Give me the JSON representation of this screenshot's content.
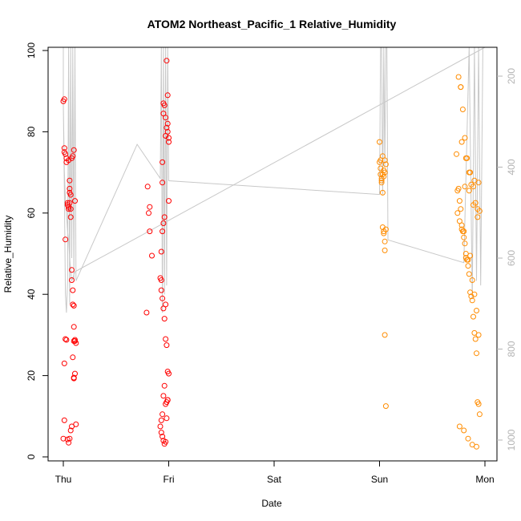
{
  "chart_data": {
    "type": "scatter",
    "title": "ATOM2 Northeast_Pacific_1 Relative_Humidity",
    "xlabel": "Date",
    "ylabel": "Relative_Humidity",
    "x_ticks": [
      "Thu",
      "Fri",
      "Sat",
      "Sun",
      "Mon"
    ],
    "x_tick_day_index": [
      0,
      1,
      2,
      3,
      4
    ],
    "xlim": [
      -0.2,
      4.1
    ],
    "ylim": [
      0,
      100
    ],
    "y_ticks": [
      0,
      20,
      40,
      60,
      80,
      100
    ],
    "right_axis": {
      "ticks": [
        200,
        400,
        600,
        800,
        1000
      ],
      "lim": [
        1050,
        110
      ],
      "color": "#b4b4b4"
    },
    "colors": {
      "series_1": "#ff0000",
      "series_2": "#ff8c00",
      "profile_line": "#c8c8c8",
      "axis": "#000000"
    },
    "series": [
      {
        "color": "#ff0000",
        "x": [
          0.0,
          0.01,
          0.01,
          0.01,
          0.02,
          0.02,
          0.01,
          0.03,
          0.03,
          0.04,
          0.04,
          0.05,
          0.05,
          0.05,
          0.06,
          0.06,
          0.06,
          0.07,
          0.07,
          0.08,
          0.08,
          0.09,
          0.09,
          0.1,
          0.1,
          0.11,
          0.12,
          0.11,
          0.11,
          0.1,
          0.09,
          0.1,
          0.1,
          0.12,
          0.08,
          0.07,
          0.06,
          0.05,
          0.04,
          0.03,
          0.02,
          0.01,
          0.0,
          0.06,
          0.07,
          0.08,
          0.09,
          0.1,
          0.11,
          0.79,
          0.8,
          0.81,
          0.82,
          0.82,
          0.84,
          0.93,
          0.94,
          0.94,
          0.95,
          0.96,
          0.95,
          0.97,
          0.98,
          0.99,
          0.99,
          1.0,
          1.0,
          0.99,
          0.98,
          0.97,
          0.96,
          0.95,
          0.94,
          0.93,
          0.92,
          0.93,
          0.94,
          0.95,
          0.96,
          0.97,
          0.97,
          0.98,
          0.99,
          1.0,
          0.99,
          0.98,
          0.97,
          0.96,
          0.95,
          0.94,
          0.93,
          0.92,
          0.93,
          0.94,
          0.95,
          0.96,
          0.97,
          0.98,
          0.99,
          1.0
        ],
        "y": [
          87.5,
          88.0,
          76.0,
          75.0,
          74.5,
          53.5,
          23.0,
          72.5,
          73.5,
          62.5,
          62.0,
          61.5,
          61.0,
          73.0,
          68.0,
          66.0,
          65.0,
          64.5,
          59.0,
          46.0,
          43.5,
          41.0,
          37.5,
          37.2,
          32.0,
          28.5,
          28.0,
          28.8,
          20.5,
          19.5,
          24.5,
          19.3,
          28.5,
          8.0,
          7.5,
          6.5,
          4.5,
          3.5,
          4.3,
          28.8,
          29.0,
          9.0,
          4.5,
          62.5,
          61.0,
          73.5,
          74.0,
          75.5,
          63.0,
          35.5,
          66.5,
          60.0,
          61.5,
          55.5,
          49.5,
          43.5,
          72.5,
          67.5,
          87.0,
          86.5,
          84.5,
          83.5,
          97.5,
          89.0,
          82.0,
          78.5,
          77.5,
          80.0,
          81.0,
          79.0,
          59.0,
          57.5,
          55.5,
          50.5,
          44.0,
          41.0,
          39.0,
          36.5,
          34.0,
          37.5,
          29.0,
          27.5,
          21.0,
          20.5,
          14.0,
          13.5,
          13.0,
          17.5,
          15.0,
          10.5,
          9.0,
          7.5,
          6.0,
          5.0,
          4.0,
          3.2,
          3.7,
          9.5,
          14.0,
          63.0
        ]
      },
      {
        "color": "#ff8c00",
        "x": [
          3.0,
          3.0,
          3.01,
          3.01,
          3.02,
          3.02,
          3.03,
          3.03,
          3.04,
          3.04,
          3.05,
          3.05,
          3.05,
          3.06,
          3.06,
          3.02,
          3.01,
          3.03,
          3.04,
          3.05,
          3.06,
          3.05,
          3.04,
          3.03,
          3.73,
          3.74,
          3.75,
          3.76,
          3.77,
          3.78,
          3.79,
          3.8,
          3.81,
          3.82,
          3.83,
          3.84,
          3.85,
          3.86,
          3.87,
          3.88,
          3.89,
          3.9,
          3.91,
          3.92,
          3.93,
          3.94,
          3.95,
          3.75,
          3.77,
          3.79,
          3.81,
          3.83,
          3.85,
          3.87,
          3.89,
          3.91,
          3.93,
          3.95,
          3.74,
          3.76,
          3.78,
          3.8,
          3.82,
          3.84,
          3.86,
          3.88,
          3.9,
          3.92,
          3.94,
          3.76,
          3.8,
          3.84,
          3.88,
          3.92,
          3.78,
          3.82,
          3.86,
          3.9,
          3.94,
          3.77,
          3.81,
          3.85,
          3.89,
          3.93
        ],
        "y": [
          77.5,
          72.5,
          71.0,
          69.5,
          68.5,
          67.5,
          65.0,
          56.5,
          55.5,
          55.0,
          53.0,
          50.8,
          30.0,
          12.5,
          56.0,
          68.0,
          73.0,
          74.0,
          69.0,
          70.0,
          72.0,
          73.0,
          70.5,
          69.5,
          74.5,
          65.5,
          66.0,
          63.0,
          61.0,
          57.0,
          55.5,
          54.0,
          52.5,
          49.0,
          48.5,
          47.0,
          45.0,
          40.5,
          39.5,
          38.5,
          34.5,
          30.5,
          29.0,
          25.5,
          13.5,
          13.0,
          10.5,
          93.5,
          91.0,
          85.5,
          78.5,
          73.5,
          70.0,
          67.0,
          66.5,
          62.5,
          61.0,
          60.5,
          60.0,
          58.0,
          56.0,
          55.5,
          50.0,
          48.5,
          49.5,
          43.5,
          40.0,
          36.0,
          30.0,
          7.5,
          6.5,
          4.5,
          3.0,
          2.5,
          77.5,
          73.5,
          70.0,
          68.0,
          67.5,
          91.0,
          66.5,
          65.5,
          62.0,
          59.0
        ]
      }
    ],
    "profile_line": {
      "color": "#c8c8c8",
      "x": [
        0.0,
        0.0,
        0.01,
        0.02,
        0.03,
        0.04,
        0.05,
        0.06,
        0.07,
        0.08,
        0.09,
        0.1,
        0.11,
        0.12,
        0.7,
        0.92,
        0.93,
        0.94,
        0.95,
        0.96,
        0.97,
        0.98,
        0.99,
        1.0,
        3.0,
        3.01,
        3.02,
        3.03,
        3.04,
        3.05,
        3.06,
        3.07,
        3.08,
        3.8,
        3.85,
        3.88,
        3.9,
        3.92,
        3.94,
        3.96,
        3.98,
        4.0,
        0.11,
        0.08,
        0.06,
        0.05,
        0.04,
        0.03,
        0.02,
        0.01,
        0.0
      ],
      "y_right": [
        110,
        265,
        450,
        680,
        720,
        650,
        110,
        700,
        110,
        600,
        110,
        650,
        110,
        650,
        350,
        425,
        110,
        720,
        110,
        680,
        110,
        660,
        110,
        430,
        460,
        110,
        110,
        460,
        110,
        400,
        110,
        110,
        560,
        610,
        110,
        690,
        110,
        650,
        110,
        660,
        110,
        110,
        630,
        650,
        600,
        560,
        540,
        500,
        470,
        410,
        260
      ]
    }
  }
}
